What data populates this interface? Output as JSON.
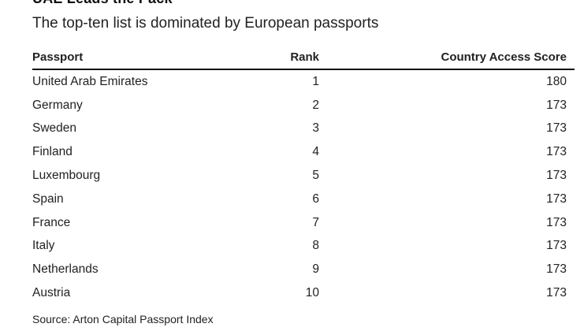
{
  "header": {
    "title": "UAE Leads the Pack",
    "subtitle": "The top-ten list is dominated by European passports"
  },
  "chart_data": {
    "type": "table",
    "columns": [
      "Passport",
      "Rank",
      "Country Access Score"
    ],
    "rows": [
      [
        "United Arab Emirates",
        "1",
        "180"
      ],
      [
        "Germany",
        "2",
        "173"
      ],
      [
        "Sweden",
        "3",
        "173"
      ],
      [
        "Finland",
        "4",
        "173"
      ],
      [
        "Luxembourg",
        "5",
        "173"
      ],
      [
        "Spain",
        "6",
        "173"
      ],
      [
        "France",
        "7",
        "173"
      ],
      [
        "Italy",
        "8",
        "173"
      ],
      [
        "Netherlands",
        "9",
        "173"
      ],
      [
        "Austria",
        "10",
        "173"
      ]
    ]
  },
  "footer": {
    "source": "Source: Arton Capital Passport Index"
  }
}
